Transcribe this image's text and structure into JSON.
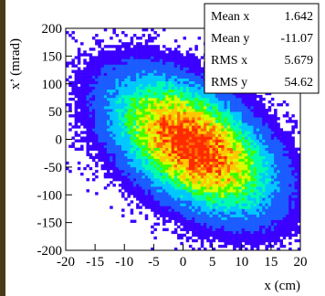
{
  "chart_data": {
    "type": "heatmap",
    "title": "",
    "xlabel": "x (cm)",
    "ylabel": "x’ (mrad)",
    "xlim": [
      -20,
      20
    ],
    "ylim": [
      -200,
      200
    ],
    "x_ticks": [
      "-20",
      "-15",
      "-10",
      "-5",
      "0",
      "5",
      "10",
      "15",
      "20"
    ],
    "y_ticks": [
      "200",
      "150",
      "100",
      "50",
      "0",
      "-50",
      "-100",
      "-150",
      "-200"
    ],
    "x_tick_values": [
      -20,
      -15,
      -10,
      -5,
      0,
      5,
      10,
      15,
      20
    ],
    "y_tick_values": [
      200,
      150,
      100,
      50,
      0,
      -50,
      -100,
      -150,
      -200
    ],
    "grid": false,
    "distribution": {
      "mean_x": 1.642,
      "mean_y": -11.07,
      "rms_x": 5.679,
      "rms_y": 54.62,
      "correlation": -0.5
    },
    "colormap": [
      "#3b00ff",
      "#1a5cff",
      "#00c8ff",
      "#00ffaa",
      "#3cff00",
      "#d8ff00",
      "#ffc800",
      "#ff6a00",
      "#ff2a00"
    ],
    "stats_box": {
      "position": "top-right",
      "rows": [
        {
          "label": "Mean x",
          "value": "1.642"
        },
        {
          "label": "Mean y",
          "value": "-11.07"
        },
        {
          "label": "RMS x",
          "value": "5.679"
        },
        {
          "label": "RMS y",
          "value": "54.62"
        }
      ]
    }
  }
}
